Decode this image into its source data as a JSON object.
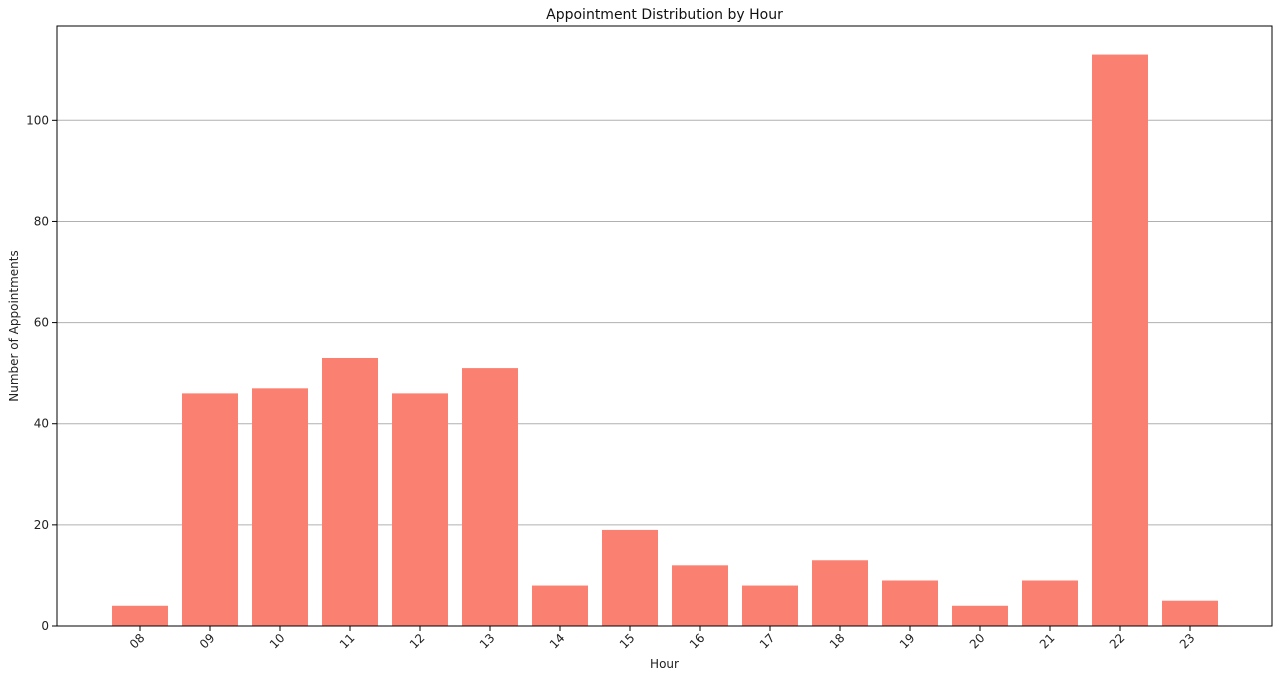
{
  "chart_data": {
    "type": "bar",
    "title": "Appointment Distribution by Hour",
    "xlabel": "Hour",
    "ylabel": "Number of Appointments",
    "categories": [
      "08",
      "09",
      "10",
      "11",
      "12",
      "13",
      "14",
      "15",
      "16",
      "17",
      "18",
      "19",
      "20",
      "21",
      "22",
      "23"
    ],
    "values": [
      4,
      46,
      47,
      53,
      46,
      51,
      8,
      19,
      12,
      8,
      13,
      9,
      4,
      9,
      113,
      5
    ],
    "ylim": [
      0,
      118.65
    ],
    "yticks": [
      "0",
      "20",
      "40",
      "60",
      "80",
      "100"
    ],
    "grid": "horizontal",
    "bar_color": "#fa8072",
    "grid_color": "#b0b0b0"
  }
}
